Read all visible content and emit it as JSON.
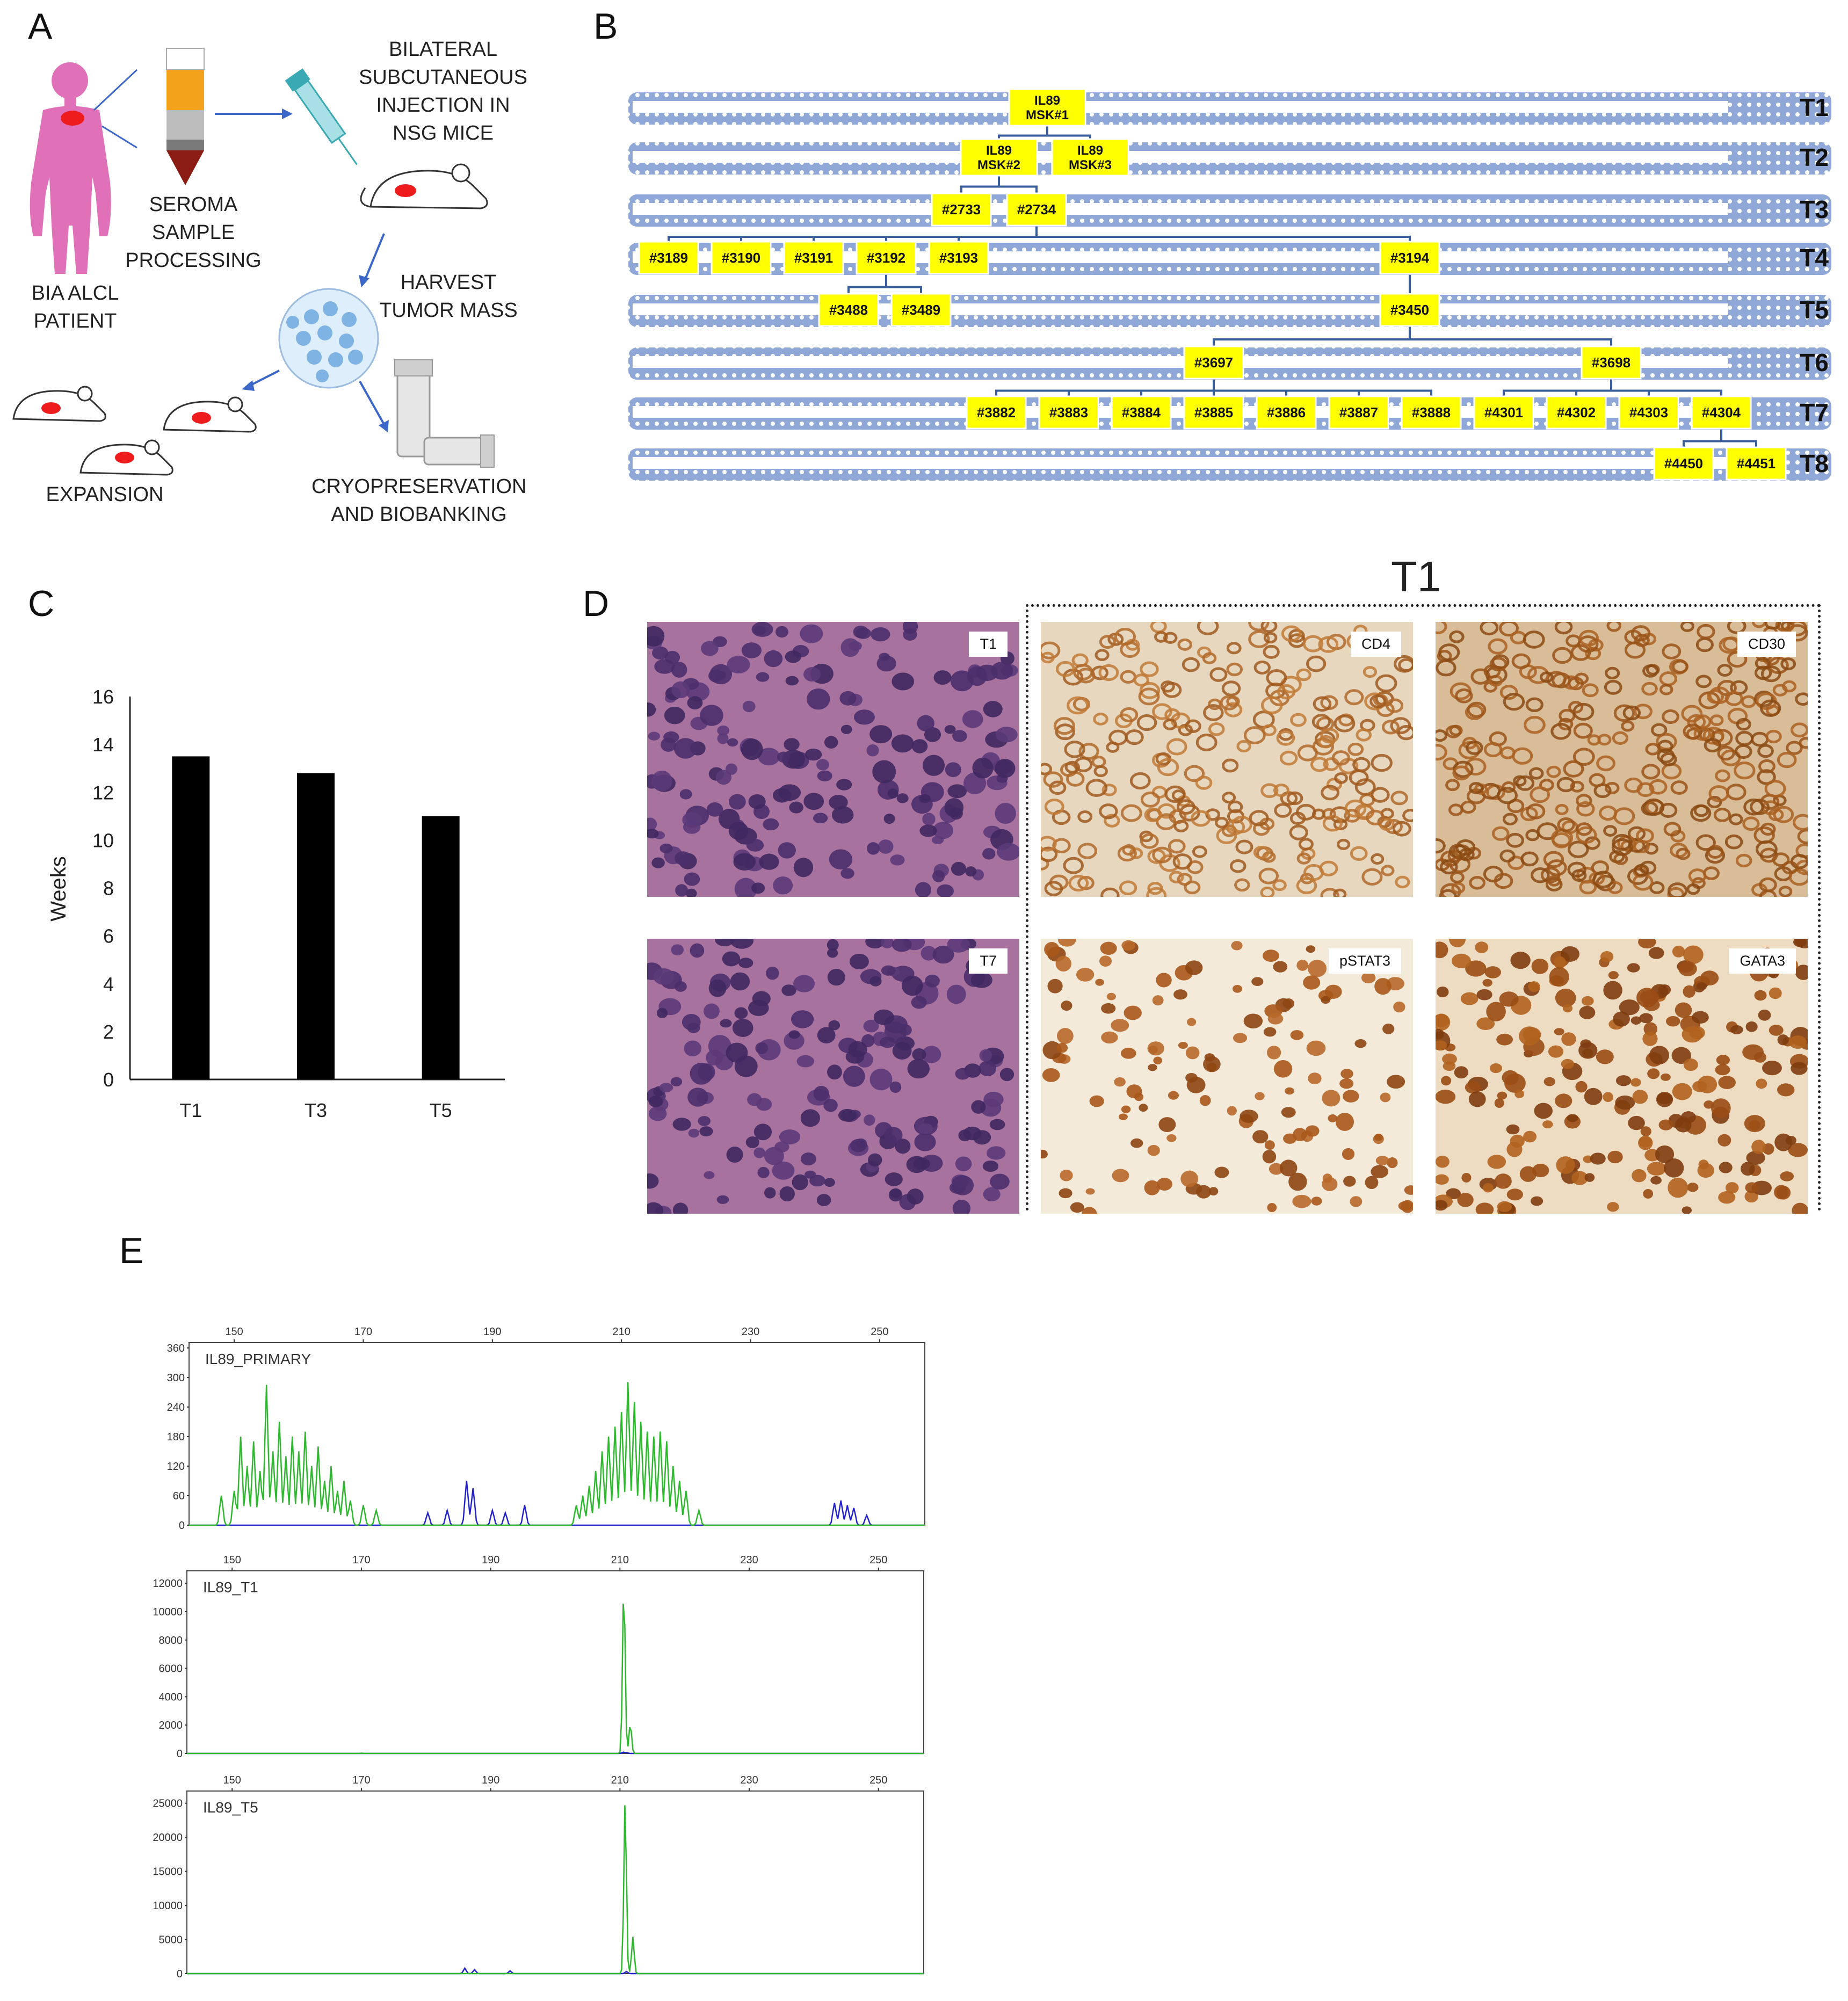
{
  "panel_a": {
    "letter": "A",
    "patient_label": "BIA ALCL\nPATIENT",
    "seroma_label": "SEROMA\nSAMPLE\nPROCESSING",
    "injection_label": "BILATERAL\nSUBCUTANEOUS\nINJECTION IN\nNSG MICE",
    "harvest_label": "HARVEST\nTUMOR MASS",
    "expansion_label": "EXPANSION",
    "cryo_label": "CRYOPRESERVATION\nAND BIOBANKING"
  },
  "panel_b": {
    "letter": "B",
    "rows": [
      "T1",
      "T2",
      "T3",
      "T4",
      "T5",
      "T6",
      "T7",
      "T8"
    ],
    "nodes": [
      {
        "id": "IL89\nMSK#1",
        "row": 0
      },
      {
        "id": "IL89\nMSK#2",
        "row": 1
      },
      {
        "id": "IL89\nMSK#3",
        "row": 1
      },
      {
        "id": "#2733",
        "row": 2
      },
      {
        "id": "#2734",
        "row": 2
      },
      {
        "id": "#3189",
        "row": 3
      },
      {
        "id": "#3190",
        "row": 3
      },
      {
        "id": "#3191",
        "row": 3
      },
      {
        "id": "#3192",
        "row": 3
      },
      {
        "id": "#3193",
        "row": 3
      },
      {
        "id": "#3194",
        "row": 3
      },
      {
        "id": "#3488",
        "row": 4
      },
      {
        "id": "#3489",
        "row": 4
      },
      {
        "id": "#3450",
        "row": 4
      },
      {
        "id": "#3697",
        "row": 5
      },
      {
        "id": "#3698",
        "row": 5
      },
      {
        "id": "#3882",
        "row": 6
      },
      {
        "id": "#3883",
        "row": 6
      },
      {
        "id": "#3884",
        "row": 6
      },
      {
        "id": "#3885",
        "row": 6
      },
      {
        "id": "#3886",
        "row": 6
      },
      {
        "id": "#3887",
        "row": 6
      },
      {
        "id": "#3888",
        "row": 6
      },
      {
        "id": "#4301",
        "row": 6
      },
      {
        "id": "#4302",
        "row": 6
      },
      {
        "id": "#4303",
        "row": 6
      },
      {
        "id": "#4304",
        "row": 6
      },
      {
        "id": "#4450",
        "row": 7
      },
      {
        "id": "#4451",
        "row": 7
      }
    ],
    "edges": [
      [
        "IL89\nMSK#1",
        "IL89\nMSK#2"
      ],
      [
        "IL89\nMSK#1",
        "IL89\nMSK#3"
      ],
      [
        "IL89\nMSK#2",
        "#2733"
      ],
      [
        "IL89\nMSK#2",
        "#2734"
      ],
      [
        "#2734",
        "#3189"
      ],
      [
        "#2734",
        "#3190"
      ],
      [
        "#2734",
        "#3191"
      ],
      [
        "#2734",
        "#3192"
      ],
      [
        "#2734",
        "#3193"
      ],
      [
        "#2734",
        "#3194"
      ],
      [
        "#3192",
        "#3488"
      ],
      [
        "#3192",
        "#3489"
      ],
      [
        "#3194",
        "#3450"
      ],
      [
        "#3450",
        "#3697"
      ],
      [
        "#3450",
        "#3698"
      ],
      [
        "#3697",
        "#3882"
      ],
      [
        "#3697",
        "#3883"
      ],
      [
        "#3697",
        "#3884"
      ],
      [
        "#3697",
        "#3885"
      ],
      [
        "#3697",
        "#3886"
      ],
      [
        "#3697",
        "#3887"
      ],
      [
        "#3697",
        "#3888"
      ],
      [
        "#3698",
        "#4301"
      ],
      [
        "#3698",
        "#4302"
      ],
      [
        "#3698",
        "#4303"
      ],
      [
        "#3698",
        "#4304"
      ],
      [
        "#4304",
        "#4450"
      ],
      [
        "#4304",
        "#4451"
      ]
    ],
    "colors": {
      "node": "#ffff00",
      "band": "#8fa8d8",
      "band_dot": "#ffffff",
      "edge": "#3a5d9c"
    }
  },
  "panel_c": {
    "letter": "C",
    "bar_color": "#000000"
  },
  "chart_data": {
    "type": "bar",
    "categories": [
      "T1",
      "T3",
      "T5"
    ],
    "values": [
      13.5,
      12.8,
      11.0
    ],
    "xlabel": "",
    "ylabel": "Weeks",
    "ylim": [
      0,
      16
    ],
    "yticks": [
      "0",
      "2",
      "4",
      "6",
      "8",
      "10",
      "12",
      "14",
      "16"
    ]
  },
  "panel_d": {
    "letter": "D",
    "group_title": "T1",
    "tiles": [
      {
        "label": "T1",
        "stain": "he"
      },
      {
        "label": "CD4",
        "stain": "membrane"
      },
      {
        "label": "CD30",
        "stain": "membrane-dense"
      },
      {
        "label": "T7",
        "stain": "he"
      },
      {
        "label": "pSTAT3",
        "stain": "nuclear"
      },
      {
        "label": "GATA3",
        "stain": "nuclear-dense"
      }
    ]
  },
  "panel_e": {
    "letter": "E",
    "colors": {
      "green": "#2eb82e",
      "blue": "#2222cc",
      "frame": "#444444"
    },
    "x_ticks": [
      "150",
      "170",
      "190",
      "210",
      "230",
      "250"
    ],
    "x_range": [
      143,
      257
    ],
    "traces": [
      {
        "name": "IL89_PRIMARY",
        "yticks": [
          "0",
          "60",
          "120",
          "180",
          "240",
          "300",
          "360"
        ],
        "ymax": 360
      },
      {
        "name": "IL89_T1",
        "yticks": [
          "0",
          "2000",
          "4000",
          "6000",
          "8000",
          "10000",
          "12000"
        ],
        "ymax": 12500
      },
      {
        "name": "IL89_T5",
        "yticks": [
          "0",
          "5000",
          "10000",
          "15000",
          "20000",
          "25000"
        ],
        "ymax": 26000
      }
    ]
  }
}
